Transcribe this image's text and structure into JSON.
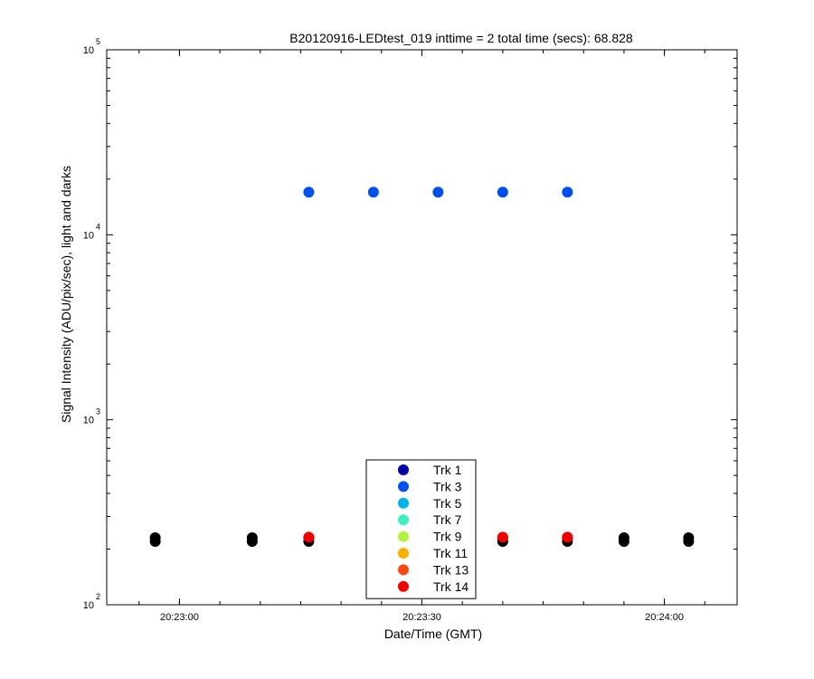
{
  "chart_data": {
    "type": "scatter",
    "title": "B20120916-LEDtest_019 inttime = 2 total time (secs): 68.828",
    "xlabel": "Date/Time (GMT)",
    "ylabel": "Signal Intensity (ADU/pix/sec), light and darks",
    "x_ticks": [
      "20:23:00",
      "20:23:30",
      "20:24:00"
    ],
    "xlim": [
      "20:22:51",
      "20:24:09"
    ],
    "y_scale": "log",
    "ylim": [
      100,
      100000
    ],
    "y_ticks": [
      {
        "base": "10",
        "exp": "2",
        "value": 100
      },
      {
        "base": "10",
        "exp": "3",
        "value": 1000
      },
      {
        "base": "10",
        "exp": "4",
        "value": 10000
      },
      {
        "base": "10",
        "exp": "5",
        "value": 100000
      }
    ],
    "grid": false,
    "legend_position": "bottom-center",
    "series": [
      {
        "name": "Trk 1",
        "color": "#0000a8",
        "x": [],
        "y": []
      },
      {
        "name": "Trk 3",
        "color": "#0050f0",
        "x": [
          "20:23:16",
          "20:23:24",
          "20:23:32",
          "20:23:40",
          "20:23:48"
        ],
        "y": [
          17000,
          17000,
          17000,
          17000,
          17000
        ]
      },
      {
        "name": "Trk 5",
        "color": "#00b4f0",
        "x": [],
        "y": []
      },
      {
        "name": "Trk 7",
        "color": "#40f0c0",
        "x": [],
        "y": []
      },
      {
        "name": "Trk 9",
        "color": "#b0f040",
        "x": [],
        "y": []
      },
      {
        "name": "Trk 11",
        "color": "#f8b000",
        "x": [],
        "y": []
      },
      {
        "name": "Trk 13",
        "color": "#f84810",
        "x": [],
        "y": []
      },
      {
        "name": "Trk 14",
        "color": "#f00000",
        "x": [
          "20:23:16",
          "20:23:40",
          "20:23:48"
        ],
        "y": [
          232,
          232,
          232
        ]
      }
    ],
    "dark_points": {
      "color": "#000000",
      "x": [
        "20:22:57",
        "20:23:09",
        "20:23:16",
        "20:23:40",
        "20:23:48",
        "20:23:55",
        "20:24:03"
      ],
      "y": [
        225,
        225,
        225,
        225,
        225,
        225,
        225
      ]
    }
  }
}
